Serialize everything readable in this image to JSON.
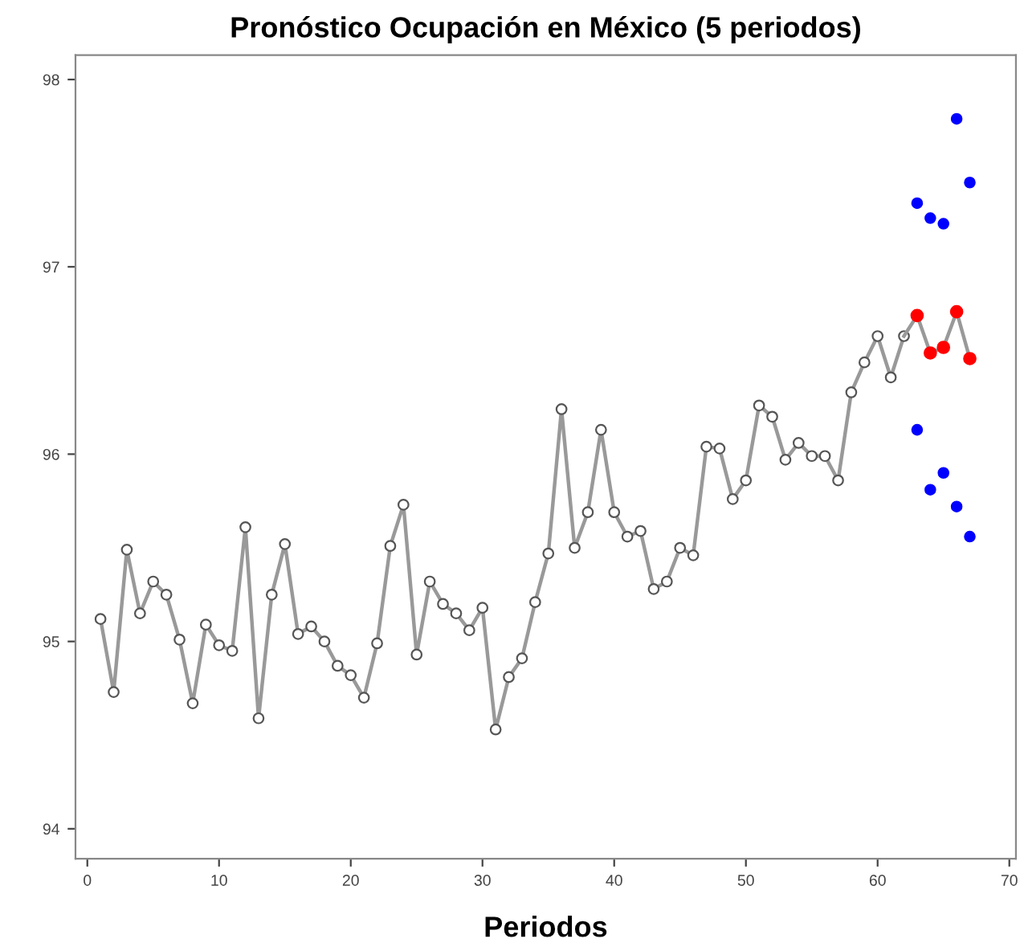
{
  "chart_data": {
    "type": "line",
    "title": "Pronóstico Ocupación en México (5 periodos)",
    "xlabel": "Periodos",
    "xlim": [
      -0.9,
      70.5
    ],
    "ylim": [
      93.84,
      98.13
    ],
    "xticks": [
      0,
      10,
      20,
      30,
      40,
      50,
      60,
      70
    ],
    "yticks": [
      94,
      95,
      96,
      97,
      98
    ],
    "grid": false,
    "legend": false,
    "marker": "circle",
    "line_style": "solid",
    "series": [
      {
        "color": "#555555",
        "x": [
          1,
          2,
          3,
          4,
          5,
          6,
          7,
          8,
          9,
          10,
          11,
          12,
          13,
          14,
          15,
          16,
          17,
          18,
          19,
          20,
          21,
          22,
          23,
          24,
          25,
          26,
          27,
          28,
          29,
          30,
          31,
          32,
          33,
          34,
          35,
          36,
          37,
          38,
          39,
          40,
          41,
          42,
          43,
          44,
          45,
          46,
          47,
          48,
          49,
          50,
          51,
          52,
          53,
          54,
          55,
          56,
          57,
          58,
          59,
          60,
          61,
          62
        ],
        "values": [
          95.12,
          94.73,
          95.49,
          95.15,
          95.32,
          95.25,
          95.01,
          94.67,
          95.09,
          94.98,
          94.95,
          95.61,
          94.59,
          95.25,
          95.52,
          95.04,
          95.08,
          95.0,
          94.87,
          94.82,
          94.7,
          94.99,
          95.51,
          95.73,
          94.93,
          95.32,
          95.2,
          95.15,
          95.06,
          95.18,
          94.53,
          94.81,
          94.91,
          95.21,
          95.47,
          96.24,
          95.5,
          95.69,
          96.13,
          95.69,
          95.56,
          95.59,
          95.28,
          95.32,
          95.5,
          95.46,
          96.04,
          96.03,
          95.76,
          95.86,
          96.26,
          96.2,
          95.97,
          96.06,
          95.99,
          95.99,
          95.86,
          96.33,
          96.49,
          96.63,
          96.41,
          96.63
        ]
      },
      {
        "color": "#ff0000",
        "x": [
          62,
          63,
          64,
          65,
          66,
          67
        ],
        "values": [
          96.63,
          96.74,
          96.54,
          96.57,
          96.76,
          96.51
        ]
      },
      {
        "type": "scatter",
        "color": "#0000ff",
        "x": [
          63,
          64,
          65,
          66,
          67
        ],
        "values": [
          97.34,
          97.26,
          97.23,
          97.79,
          97.45
        ]
      },
      {
        "type": "scatter",
        "color": "#0000ff",
        "x": [
          63,
          64,
          65,
          66,
          67
        ],
        "values": [
          96.13,
          95.81,
          95.9,
          95.72,
          95.56
        ]
      }
    ]
  }
}
